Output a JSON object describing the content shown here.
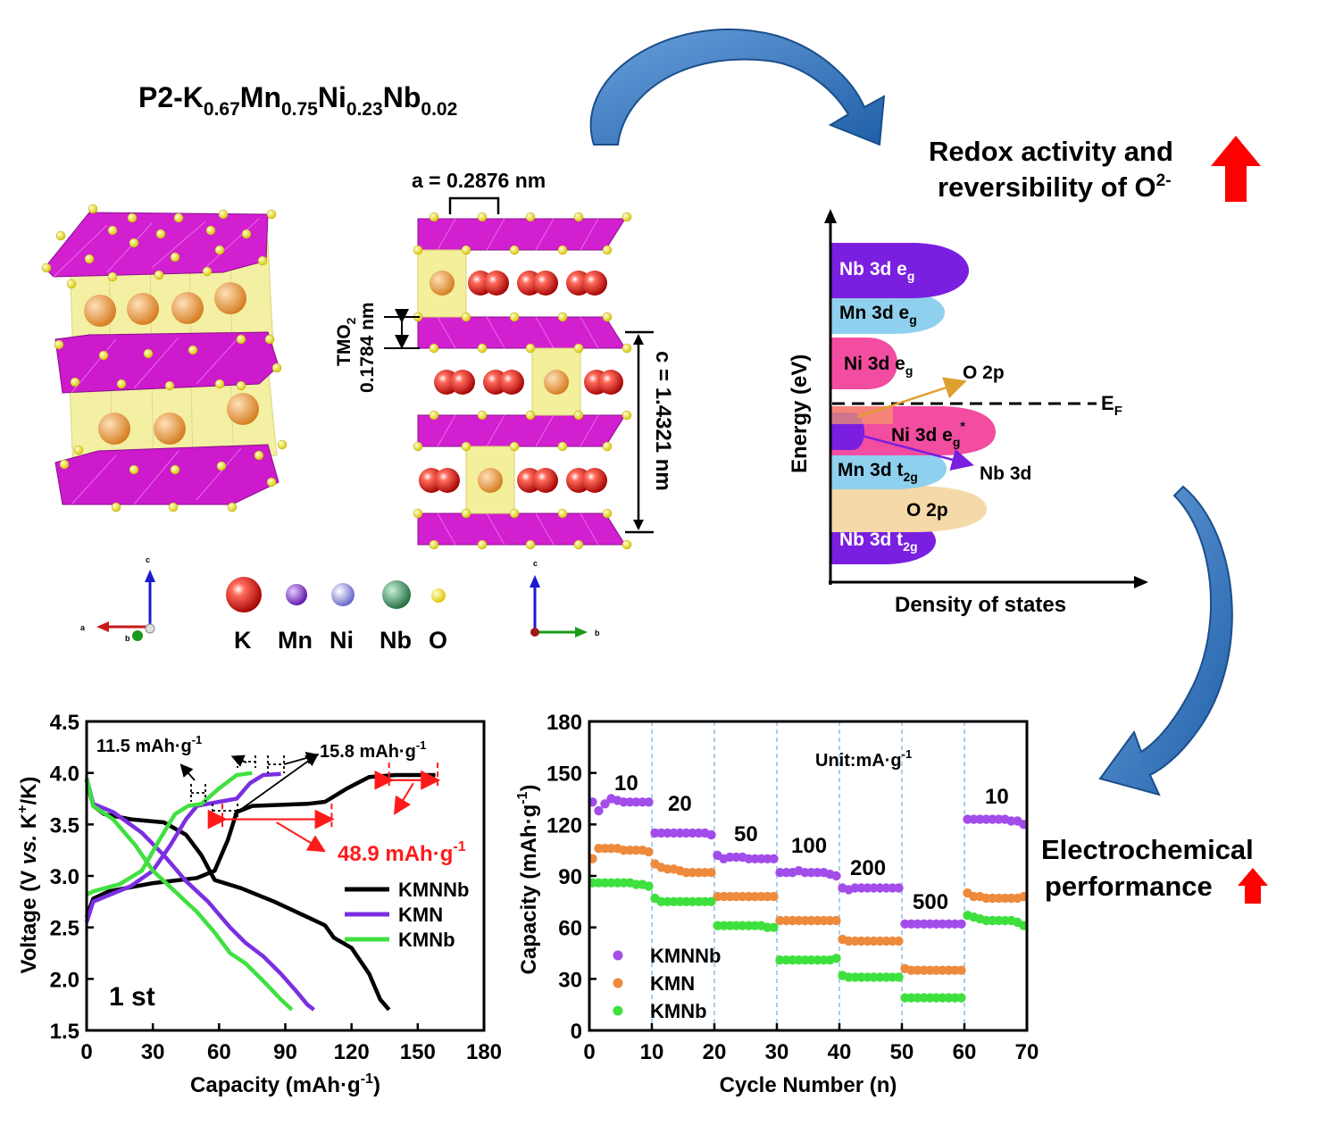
{
  "title": {
    "prefix": "P2-K",
    "k": "0.67",
    "mn_sym": "Mn",
    "mn": "0.75",
    "ni_sym": "Ni",
    "ni": "0.23",
    "nb_sym": "Nb",
    "nb": "0.02"
  },
  "structure": {
    "a_label": "a = 0.2876 nm",
    "tmo2_label": "TMO",
    "tmo2_sub": "2",
    "tmo2_value": "0.1784 nm",
    "c_label": "c = 1.4321 nm",
    "axes_left": {
      "c": "c",
      "a": "a",
      "b": "b"
    },
    "axes_right": {
      "c": "c",
      "b": "b"
    }
  },
  "legend_atoms": [
    {
      "label": "K",
      "color": "#e01d1d"
    },
    {
      "label": "Mn",
      "color": "#8a2be2"
    },
    {
      "label": "Ni",
      "color": "#8e8ee8"
    },
    {
      "label": "Nb",
      "color": "#2e8b57"
    },
    {
      "label": "O",
      "color": "#f2e63c"
    }
  ],
  "dos": {
    "heading_line1": "Redox activity and",
    "heading_line2": "reversibility of O",
    "heading_sup": "2-",
    "ylabel": "Energy (eV)",
    "xlabel": "Density of states",
    "fermi": "E",
    "fermi_sub": "F",
    "bands": [
      {
        "label": "Nb 3d e",
        "sub": "g",
        "color": "#7a1ee0"
      },
      {
        "label": "Mn 3d e",
        "sub": "g",
        "color": "#8fd0ee"
      },
      {
        "label": "Ni 3d e",
        "sub": "g",
        "color": "#f24da0"
      },
      {
        "label": "Ni 3d e",
        "sub": "g",
        "sup": "*",
        "color": "#f24da0"
      },
      {
        "label": "Mn 3d t",
        "sub": "2g",
        "color": "#8fd0ee"
      },
      {
        "label": "O 2p",
        "color": "#f5d9a8"
      },
      {
        "label": "Nb 3d t",
        "sub": "2g",
        "color": "#7a1ee0"
      }
    ],
    "arrow_o2p": "O 2p",
    "arrow_nb3d": "Nb 3d"
  },
  "electro": {
    "line1": "Electrochemical",
    "line2": "performance"
  },
  "chart_data": [
    {
      "type": "line",
      "title": "",
      "xlabel": "Capacity (mAh·g-1)",
      "ylabel": "Voltage (V vs. K+/K)",
      "xlim": [
        0,
        180
      ],
      "ylim": [
        1.5,
        4.5
      ],
      "xticks": [
        0,
        30,
        60,
        90,
        120,
        150,
        180
      ],
      "yticks": [
        1.5,
        2.0,
        2.5,
        3.0,
        3.5,
        4.0,
        4.5
      ],
      "cycle_label": "1 st",
      "annotations": [
        "11.5 mAh·g-1",
        "15.8 mAh·g-1",
        "48.9 mAh·g-1"
      ],
      "series": [
        {
          "name": "KMNNb",
          "color": "#000000",
          "charge": [
            [
              0,
              2.6
            ],
            [
              3,
              2.78
            ],
            [
              10,
              2.85
            ],
            [
              30,
              2.93
            ],
            [
              50,
              2.98
            ],
            [
              58,
              3.05
            ],
            [
              64,
              3.35
            ],
            [
              68,
              3.62
            ],
            [
              75,
              3.68
            ],
            [
              100,
              3.7
            ],
            [
              108,
              3.72
            ],
            [
              118,
              3.85
            ],
            [
              128,
              3.96
            ],
            [
              140,
              3.98
            ],
            [
              158,
              3.98
            ]
          ],
          "discharge": [
            [
              0,
              3.93
            ],
            [
              3,
              3.68
            ],
            [
              8,
              3.6
            ],
            [
              20,
              3.55
            ],
            [
              35,
              3.52
            ],
            [
              45,
              3.4
            ],
            [
              52,
              3.2
            ],
            [
              58,
              2.96
            ],
            [
              70,
              2.88
            ],
            [
              85,
              2.75
            ],
            [
              100,
              2.6
            ],
            [
              108,
              2.52
            ],
            [
              112,
              2.4
            ],
            [
              120,
              2.3
            ],
            [
              128,
              2.05
            ],
            [
              133,
              1.8
            ],
            [
              137,
              1.7
            ]
          ]
        },
        {
          "name": "KMN",
          "color": "#7b2fe0",
          "charge": [
            [
              0,
              2.55
            ],
            [
              3,
              2.75
            ],
            [
              20,
              2.9
            ],
            [
              30,
              3.05
            ],
            [
              38,
              3.3
            ],
            [
              45,
              3.55
            ],
            [
              50,
              3.68
            ],
            [
              60,
              3.72
            ],
            [
              68,
              3.75
            ],
            [
              74,
              3.9
            ],
            [
              80,
              3.98
            ],
            [
              88,
              3.99
            ]
          ],
          "discharge": [
            [
              0,
              3.95
            ],
            [
              3,
              3.7
            ],
            [
              12,
              3.62
            ],
            [
              25,
              3.42
            ],
            [
              35,
              3.2
            ],
            [
              45,
              2.95
            ],
            [
              55,
              2.75
            ],
            [
              65,
              2.5
            ],
            [
              72,
              2.35
            ],
            [
              80,
              2.22
            ],
            [
              88,
              2.05
            ],
            [
              95,
              1.88
            ],
            [
              100,
              1.75
            ],
            [
              103,
              1.7
            ]
          ]
        },
        {
          "name": "KMNb",
          "color": "#40e040",
          "charge": [
            [
              0,
              2.82
            ],
            [
              3,
              2.85
            ],
            [
              15,
              2.92
            ],
            [
              25,
              3.05
            ],
            [
              33,
              3.35
            ],
            [
              40,
              3.6
            ],
            [
              46,
              3.68
            ],
            [
              52,
              3.7
            ],
            [
              60,
              3.85
            ],
            [
              68,
              3.98
            ],
            [
              75,
              4.0
            ]
          ],
          "discharge": [
            [
              0,
              3.95
            ],
            [
              3,
              3.68
            ],
            [
              12,
              3.55
            ],
            [
              22,
              3.3
            ],
            [
              30,
              3.05
            ],
            [
              40,
              2.85
            ],
            [
              50,
              2.65
            ],
            [
              58,
              2.45
            ],
            [
              65,
              2.25
            ],
            [
              72,
              2.15
            ],
            [
              80,
              1.98
            ],
            [
              88,
              1.8
            ],
            [
              93,
              1.7
            ]
          ]
        }
      ]
    },
    {
      "type": "scatter",
      "title": "",
      "xlabel": "Cycle Number (n)",
      "ylabel": "Capacity (mAh·g-1)",
      "xlim": [
        0,
        70
      ],
      "ylim": [
        0,
        180
      ],
      "xticks": [
        0,
        10,
        20,
        30,
        40,
        50,
        60,
        70
      ],
      "yticks": [
        0,
        30,
        60,
        90,
        120,
        150,
        180
      ],
      "unit_label": "Unit:mA·g-1",
      "rate_labels": [
        "10",
        "20",
        "50",
        "100",
        "200",
        "500",
        "10"
      ],
      "series": [
        {
          "name": "KMNNb",
          "color": "#a24dea",
          "values": [
            133,
            128,
            132,
            135,
            134,
            133,
            133,
            133,
            133,
            133,
            115,
            115,
            115,
            115,
            115,
            115,
            115,
            115,
            115,
            114,
            102,
            100,
            101,
            101,
            101,
            100,
            100,
            100,
            100,
            100,
            92,
            92,
            92,
            93,
            92,
            92,
            92,
            92,
            91,
            90,
            83,
            82,
            83,
            83,
            83,
            83,
            83,
            83,
            83,
            83,
            62,
            62,
            62,
            62,
            62,
            62,
            62,
            62,
            62,
            62,
            123,
            123,
            123,
            123,
            123,
            123,
            123,
            122,
            122,
            120
          ]
        },
        {
          "name": "KMN",
          "color": "#ee8a3c",
          "values": [
            100,
            106,
            106,
            106,
            106,
            105,
            105,
            105,
            105,
            104,
            97,
            95,
            94,
            94,
            93,
            92,
            92,
            92,
            92,
            92,
            78,
            78,
            78,
            78,
            78,
            78,
            78,
            78,
            78,
            78,
            64,
            64,
            64,
            64,
            64,
            64,
            64,
            64,
            64,
            64,
            53,
            52,
            52,
            52,
            52,
            52,
            52,
            52,
            52,
            52,
            36,
            35,
            35,
            35,
            35,
            35,
            35,
            35,
            35,
            35,
            80,
            78,
            78,
            77,
            77,
            77,
            77,
            77,
            77,
            78
          ]
        },
        {
          "name": "KMNb",
          "color": "#3ee03e",
          "values": [
            86,
            86,
            86,
            86,
            86,
            86,
            86,
            85,
            85,
            84,
            77,
            75,
            75,
            75,
            75,
            75,
            75,
            75,
            75,
            75,
            61,
            61,
            61,
            61,
            61,
            61,
            61,
            61,
            60,
            60,
            41,
            41,
            41,
            41,
            41,
            41,
            41,
            41,
            41,
            42,
            32,
            31,
            31,
            31,
            31,
            31,
            31,
            31,
            31,
            31,
            19,
            19,
            19,
            19,
            19,
            19,
            19,
            19,
            19,
            19,
            67,
            66,
            65,
            64,
            64,
            64,
            64,
            64,
            63,
            61
          ]
        }
      ]
    }
  ]
}
